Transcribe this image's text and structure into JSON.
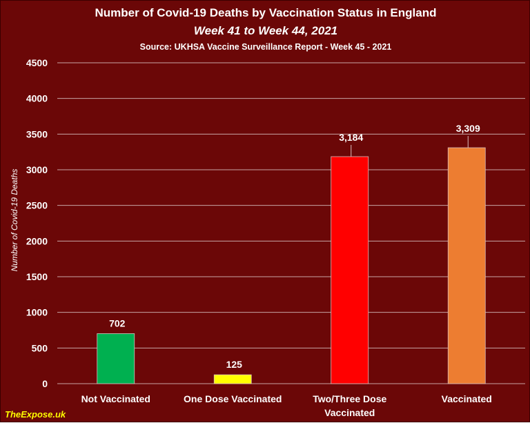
{
  "chart_data": {
    "type": "bar",
    "title": "Number of Covid-19 Deaths by Vaccination Status in England",
    "subtitle": "Week 41 to Week 44, 2021",
    "source": "Source: UKHSA Vaccine Surveillance Report - Week 45 - 2021",
    "ylabel": "Number of Covid-19 Deaths",
    "xlabel": "",
    "categories": [
      "Not Vaccinated",
      "One Dose Vaccinated",
      "Two/Three Dose Vaccinated",
      "Vaccinated"
    ],
    "category_lines": [
      [
        "Not Vaccinated"
      ],
      [
        "One Dose Vaccinated"
      ],
      [
        "Two/Three Dose",
        "Vaccinated"
      ],
      [
        "Vaccinated"
      ]
    ],
    "values": [
      702,
      125,
      3184,
      3309
    ],
    "data_labels": [
      "702",
      "125",
      "3,184",
      "3,309"
    ],
    "bar_colors": [
      "#00b050",
      "#ffff00",
      "#ff0000",
      "#ed7d31"
    ],
    "ylim": [
      0,
      4500
    ],
    "yticks": [
      0,
      500,
      1000,
      1500,
      2000,
      2500,
      3000,
      3500,
      4000,
      4500
    ],
    "grid": true,
    "legend": "none"
  },
  "colors": {
    "background": "#6b0707",
    "gridline": "#c8a6a6",
    "text": "#ffffff",
    "watermark": "#ffff00"
  },
  "watermark": "TheExpose.uk"
}
